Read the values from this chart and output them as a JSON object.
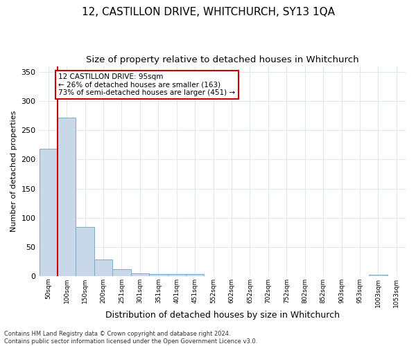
{
  "title": "12, CASTILLON DRIVE, WHITCHURCH, SY13 1QA",
  "subtitle": "Size of property relative to detached houses in Whitchurch",
  "xlabel": "Distribution of detached houses by size in Whitchurch",
  "ylabel": "Number of detached properties",
  "bar_labels": [
    "50sqm",
    "100sqm",
    "150sqm",
    "200sqm",
    "251sqm",
    "301sqm",
    "351sqm",
    "401sqm",
    "451sqm",
    "552sqm",
    "602sqm",
    "652sqm",
    "702sqm",
    "752sqm",
    "802sqm",
    "852sqm",
    "903sqm",
    "953sqm",
    "1003sqm",
    "1053sqm"
  ],
  "bar_values": [
    218,
    272,
    84,
    28,
    12,
    5,
    4,
    4,
    4,
    0,
    0,
    0,
    0,
    0,
    0,
    0,
    0,
    0,
    3,
    0
  ],
  "bar_color": "#c8d8e8",
  "bar_edge_color": "#7aaac8",
  "marker_color": "#cc0000",
  "annotation_title": "12 CASTILLON DRIVE: 95sqm",
  "annotation_line1": "← 26% of detached houses are smaller (163)",
  "annotation_line2": "73% of semi-detached houses are larger (451) →",
  "annotation_box_color": "#cc0000",
  "ylim": [
    0,
    360
  ],
  "yticks": [
    0,
    50,
    100,
    150,
    200,
    250,
    300,
    350
  ],
  "footnote1": "Contains HM Land Registry data © Crown copyright and database right 2024.",
  "footnote2": "Contains public sector information licensed under the Open Government Licence v3.0.",
  "background_color": "#ffffff",
  "grid_color": "#dde8f0",
  "title_fontsize": 11,
  "subtitle_fontsize": 9.5,
  "ylabel_fontsize": 8,
  "xlabel_fontsize": 9
}
